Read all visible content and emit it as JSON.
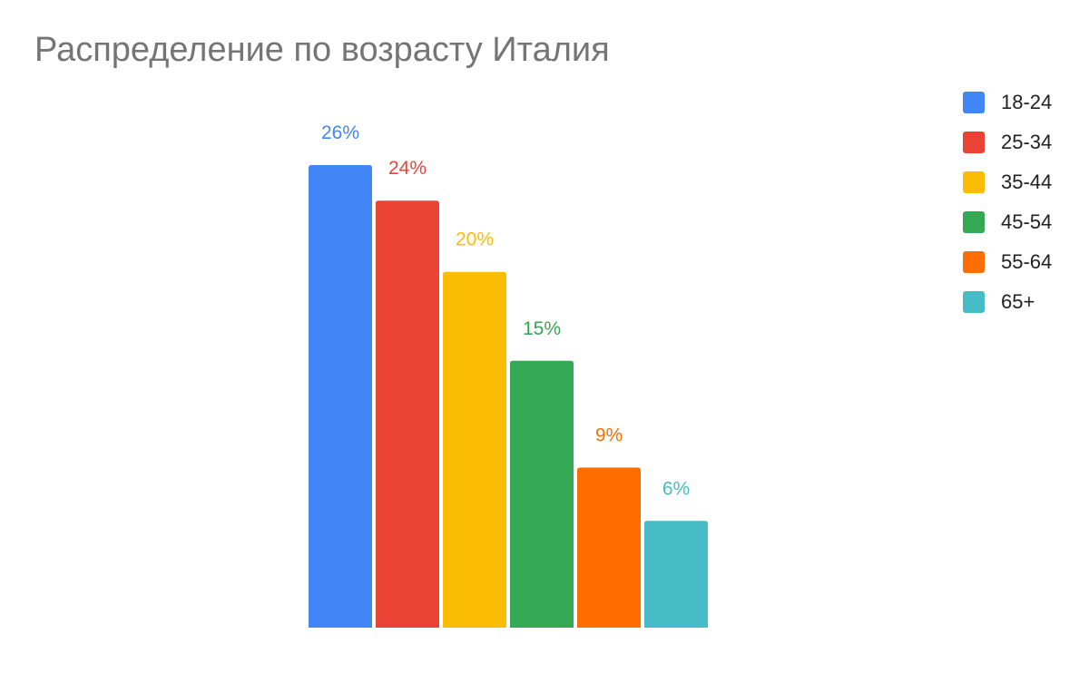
{
  "chart_data": {
    "type": "bar",
    "title": "Распределение по возрасту Италия",
    "categories": [
      "18-24",
      "25-34",
      "35-44",
      "45-54",
      "55-64",
      "65+"
    ],
    "values": [
      26,
      24,
      20,
      15,
      9,
      6
    ],
    "data_labels": [
      "26%",
      "24%",
      "20%",
      "15%",
      "9%",
      "6%"
    ],
    "colors": [
      "#4285F4",
      "#EA4335",
      "#FBBC04",
      "#34A853",
      "#FF6D01",
      "#46BDC6"
    ],
    "ylim": [
      0,
      26
    ],
    "grid": false,
    "legend_position": "right"
  }
}
